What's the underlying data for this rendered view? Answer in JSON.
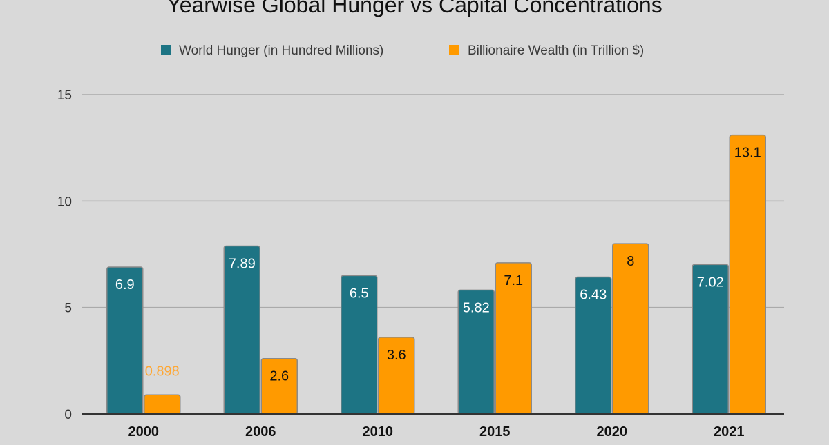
{
  "chart_data": {
    "type": "bar",
    "title": "Yearwise Global Hunger vs Capital Concentrations",
    "categories": [
      "2000",
      "2006",
      "2010",
      "2015",
      "2020",
      "2021"
    ],
    "series": [
      {
        "name": "World Hunger (in Hundred Millions)",
        "values": [
          6.9,
          7.89,
          6.5,
          5.82,
          6.43,
          7.02
        ],
        "labels": [
          "6.9",
          "7.89",
          "6.5",
          "5.82",
          "6.43",
          "7.02"
        ],
        "color": "#1d7484",
        "label_color": "#ffffff"
      },
      {
        "name": "Billionaire Wealth (in Trillion $)",
        "values": [
          0.898,
          2.6,
          3.6,
          7.1,
          8,
          13.1
        ],
        "labels": [
          "0.898",
          "2.6",
          "3.6",
          "7.1",
          "8",
          "13.1"
        ],
        "color": "#ff9a00",
        "label_color": "#111111",
        "outside_label_color": "#ffa733"
      }
    ],
    "yticks": [
      "0",
      "5",
      "10",
      "15"
    ],
    "ylim": [
      0,
      15
    ],
    "grid": true,
    "legend_position": "top-center"
  },
  "colors": {
    "background": "#d9d9d9",
    "grid": "#aaaaaa",
    "axis": "#333333",
    "bar_border": "#8a8a8a"
  }
}
